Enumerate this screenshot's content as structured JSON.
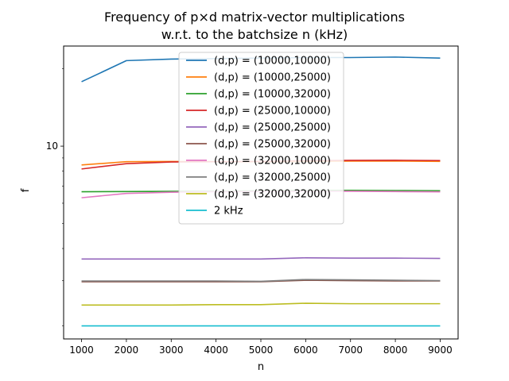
{
  "chart_data": {
    "type": "line",
    "title": "Frequency of p×d matrix-vector multiplications",
    "subtitle": "w.r.t. to the batchsize n (kHz)",
    "xlabel": "n",
    "ylabel": "f",
    "x": [
      1000,
      2000,
      3000,
      4000,
      5000,
      6000,
      7000,
      8000,
      9000
    ],
    "xlim": [
      600,
      9400
    ],
    "ylim": [
      1.78,
      24.5
    ],
    "yscale": "log",
    "x_ticks": [
      "1000",
      "2000",
      "3000",
      "4000",
      "5000",
      "6000",
      "7000",
      "8000",
      "9000"
    ],
    "y_ticks": [
      {
        "value": 10,
        "label": "10"
      }
    ],
    "y_minor_ticks": [
      2,
      3,
      4,
      5,
      6,
      7,
      8,
      9,
      20
    ],
    "grid": false,
    "legend_position": "top-center",
    "series": [
      {
        "name": "(d,p) = (10000,10000)",
        "color": "#1f77b4",
        "values": [
          17.8,
          21.5,
          21.8,
          21.9,
          22.0,
          22.1,
          22.1,
          22.2,
          22.0
        ]
      },
      {
        "name": "(d,p) = (10000,25000)",
        "color": "#ff7f0e",
        "values": [
          8.45,
          8.7,
          8.72,
          8.7,
          8.7,
          8.72,
          8.75,
          8.75,
          8.72
        ]
      },
      {
        "name": "(d,p) = (10000,32000)",
        "color": "#2ca02c",
        "values": [
          6.65,
          6.66,
          6.67,
          6.68,
          6.7,
          6.72,
          6.73,
          6.72,
          6.71
        ]
      },
      {
        "name": "(d,p) = (25000,10000)",
        "color": "#d62728",
        "values": [
          8.15,
          8.55,
          8.68,
          8.7,
          8.72,
          8.78,
          8.8,
          8.81,
          8.79
        ]
      },
      {
        "name": "(d,p) = (25000,25000)",
        "color": "#9467bd",
        "values": [
          3.64,
          3.64,
          3.64,
          3.64,
          3.64,
          3.68,
          3.67,
          3.67,
          3.66
        ]
      },
      {
        "name": "(d,p) = (25000,32000)",
        "color": "#8c564b",
        "values": [
          2.97,
          2.97,
          2.97,
          2.97,
          2.97,
          3.01,
          3.0,
          2.99,
          2.99
        ]
      },
      {
        "name": "(d,p) = (32000,10000)",
        "color": "#e377c2",
        "values": [
          6.3,
          6.55,
          6.62,
          6.65,
          6.66,
          6.67,
          6.68,
          6.66,
          6.64
        ]
      },
      {
        "name": "(d,p) = (32000,25000)",
        "color": "#7f7f7f",
        "values": [
          2.99,
          2.99,
          2.99,
          2.99,
          2.98,
          3.03,
          3.02,
          3.01,
          3.0
        ]
      },
      {
        "name": "(d,p) = (32000,32000)",
        "color": "#bcbd22",
        "values": [
          2.41,
          2.41,
          2.41,
          2.42,
          2.42,
          2.45,
          2.44,
          2.44,
          2.44
        ]
      },
      {
        "name": "2 kHz",
        "color": "#17becf",
        "values": [
          2,
          2,
          2,
          2,
          2,
          2,
          2,
          2,
          2
        ]
      }
    ]
  }
}
